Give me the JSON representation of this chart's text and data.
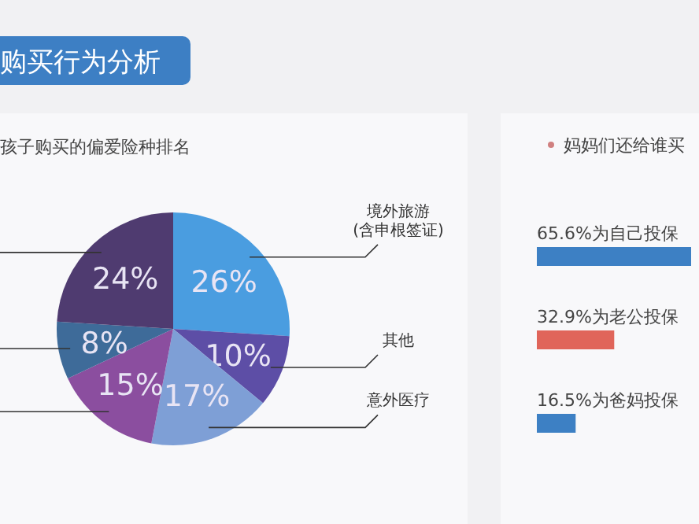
{
  "chart_data": [
    {
      "type": "pie",
      "title": "购买行为分析",
      "subtitle": "孩子购买的偏爱险种排名",
      "categories": [
        "境外旅游\n(含申根签证)",
        "其他",
        "意外医疗",
        null,
        null,
        null
      ],
      "values": [
        26,
        10,
        17,
        15,
        8,
        24
      ],
      "value_labels": [
        "26%",
        "10%",
        "17%",
        "15%",
        "8%",
        "24%"
      ],
      "colors": [
        "#4a9de0",
        "#5d4ea6",
        "#7e9fd6",
        "#8b4e9f",
        "#3e6b99",
        "#4f3b70"
      ]
    },
    {
      "type": "bar",
      "orientation": "horizontal",
      "title": "妈妈们还给谁买",
      "categories": [
        "为自己投保",
        "为老公投保",
        "为爸妈投保"
      ],
      "values": [
        65.6,
        32.9,
        16.5
      ],
      "value_labels": [
        "65.6%",
        "32.9%",
        "16.5%"
      ],
      "colors": [
        "#3d80c4",
        "#e0655a",
        "#3d80c4"
      ]
    }
  ]
}
